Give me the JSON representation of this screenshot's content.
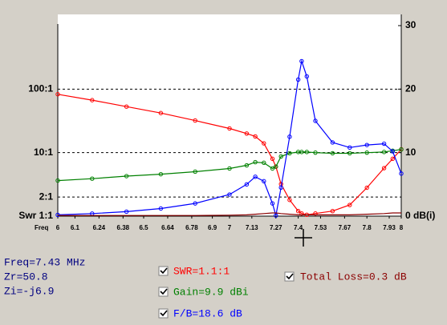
{
  "chart_data": {
    "type": "line",
    "xlabel": "Freq",
    "x": [
      6,
      6.2,
      6.4,
      6.6,
      6.8,
      7,
      7.1,
      7.15,
      7.2,
      7.25,
      7.27,
      7.3,
      7.35,
      7.4,
      7.42,
      7.45,
      7.5,
      7.6,
      7.7,
      7.8,
      7.9,
      7.95,
      8
    ],
    "xlim": [
      6,
      8
    ],
    "xticks": [
      6,
      6.1,
      6.24,
      6.38,
      6.5,
      6.64,
      6.78,
      6.9,
      7,
      7.13,
      7.27,
      7.4,
      7.53,
      7.67,
      7.8,
      7.93,
      8
    ],
    "ylim": [
      1,
      1000
    ],
    "log_y": true,
    "yticks": [
      {
        "value": 100,
        "label": "100:1"
      },
      {
        "value": 10,
        "label": "10:1"
      },
      {
        "value": 2,
        "label": "2:1"
      },
      {
        "value": 1,
        "label": "Swr 1:1"
      }
    ],
    "y2lim": [
      0,
      30
    ],
    "y2ticks": [
      30,
      20,
      10,
      {
        "value": 0,
        "label": "0 dB(i)"
      }
    ],
    "grid": true,
    "series": [
      {
        "color": "#ff0000",
        "markers": true,
        "values": [
          83,
          67,
          53,
          42,
          32,
          24,
          20,
          18,
          14,
          8,
          6,
          3.2,
          1.8,
          1.2,
          1.1,
          1.05,
          1.1,
          1.2,
          1.5,
          2.8,
          5.7,
          8,
          11.3
        ]
      },
      {
        "color": "#008000",
        "axis": "y2",
        "markers": true,
        "values": [
          5.6,
          5.9,
          6.3,
          6.6,
          7.0,
          7.5,
          8.0,
          8.5,
          8.4,
          7.5,
          7.8,
          9.4,
          9.9,
          10.1,
          10.1,
          10.1,
          10.0,
          9.9,
          9.9,
          10,
          10.1,
          10.3,
          10.5
        ]
      },
      {
        "color": "#0000ff",
        "axis": "y2",
        "markers": true,
        "values": [
          0.2,
          0.4,
          0.7,
          1.2,
          2.0,
          3.4,
          5.0,
          6.2,
          5.5,
          2.0,
          0.1,
          4.5,
          12.5,
          21.5,
          24.4,
          22,
          15,
          11.6,
          10.8,
          11.2,
          11.4,
          10.2,
          6.7
        ]
      },
      {
        "color": "#8b0000",
        "axis": "y2",
        "markers": false,
        "values": [
          0.1,
          0.1,
          0.1,
          0.1,
          0.1,
          0.15,
          0.2,
          0.3,
          0.4,
          0.5,
          0.5,
          0.4,
          0.3,
          0.2,
          0.2,
          0.2,
          0.2,
          0.2,
          0.2,
          0.3,
          0.4,
          0.5,
          0.5
        ]
      }
    ]
  },
  "readout": {
    "freq": "Freq=7.43 MHz",
    "zr": "Zr=50.8",
    "zi": "Zi=-j6.9",
    "swr": "SWR=1.1:1",
    "gain": "Gain=9.9 dBi",
    "fb": "F/B=18.6 dB",
    "loss": "Total Loss=0.3 dB"
  }
}
